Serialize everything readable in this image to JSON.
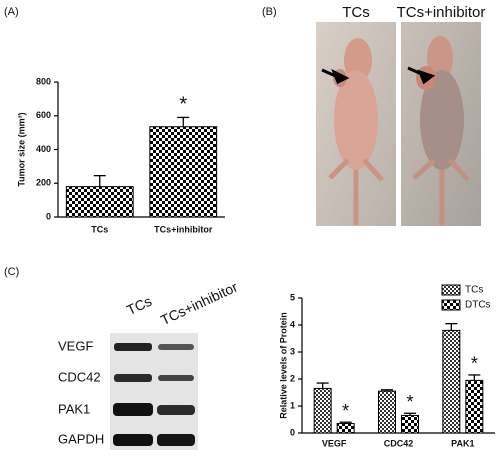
{
  "panel_labels": [
    "(A)",
    "(B)",
    "(C)"
  ],
  "chart_data": [
    {
      "type": "bar",
      "ylabel": "Tumor size (mm³)",
      "categories": [
        "TCs",
        "TCs+inhibitor"
      ],
      "values": [
        180,
        535
      ],
      "errors": [
        65,
        55
      ],
      "color": "#000000",
      "annotation": "*",
      "ylim": [
        0,
        800
      ],
      "yticks": [
        0,
        200,
        400,
        600,
        800
      ]
    },
    {
      "type": "grouped_bar",
      "ylabel": "Relative levels of  Protein",
      "categories": [
        "VEGF",
        "CDC42",
        "PAK1"
      ],
      "series": [
        {
          "name": "TCs",
          "color": "#333333",
          "values": [
            1.65,
            1.55,
            3.8
          ],
          "errors": [
            0.2,
            0.05,
            0.25
          ]
        },
        {
          "name": "DTCs",
          "color": "#000000",
          "values": [
            0.35,
            0.65,
            1.95
          ],
          "errors": [
            0.05,
            0.08,
            0.2
          ],
          "labels": [
            "*",
            "*",
            "*"
          ]
        }
      ],
      "ylim": [
        0,
        5
      ],
      "yticks": [
        0,
        1,
        2,
        3,
        4,
        5
      ]
    }
  ],
  "photo": {
    "labels": [
      "TCs",
      "TCs+inhibitor"
    ]
  },
  "blot": {
    "columns": [
      "TCs",
      "TCs+inhibitor"
    ],
    "rows": [
      "VEGF",
      "CDC42",
      "PAK1",
      "GAPDH"
    ]
  }
}
